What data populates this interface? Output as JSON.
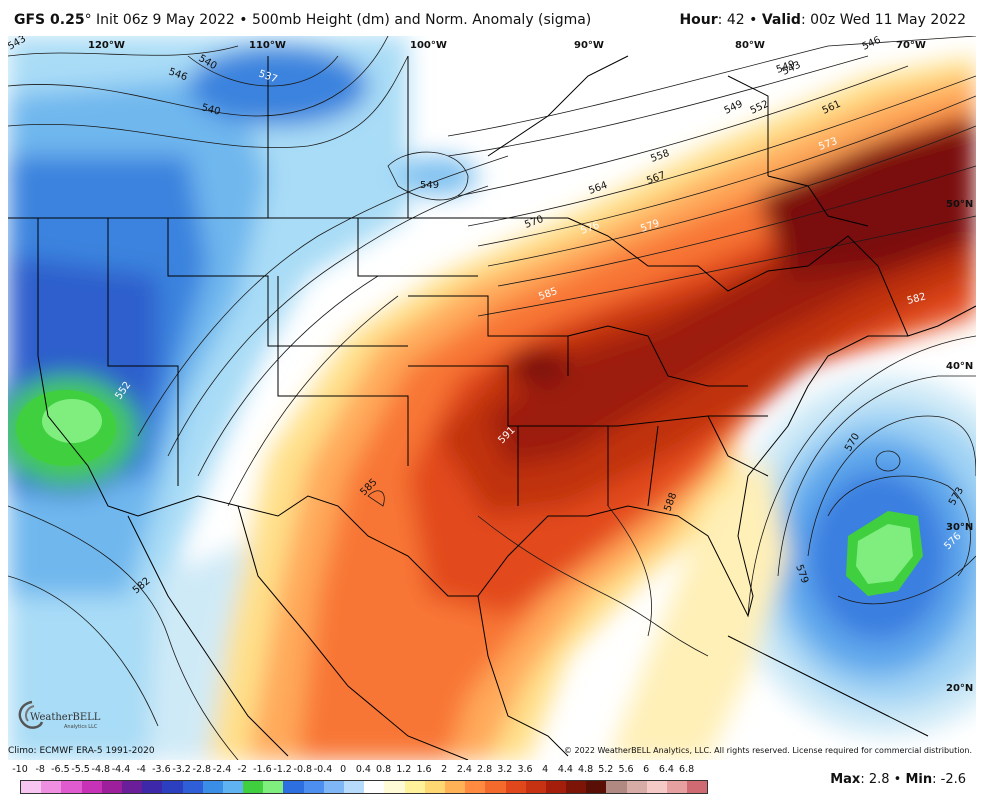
{
  "header": {
    "model": "GFS 0.25",
    "degree": "°",
    "init": " Init 06z 9 May 2022 • 500mb Height (dm) and Norm. Anomaly (sigma)",
    "hour_label": "Hour",
    "hour_value": ": 42 • ",
    "valid_label": "Valid",
    "valid_value": ": 00z Wed 11 May 2022"
  },
  "map": {
    "lon_labels": [
      "120°W",
      "110°W",
      "100°W",
      "90°W",
      "80°W",
      "70°W"
    ],
    "lat_labels": [
      "50°N",
      "40°N",
      "30°N",
      "20°N"
    ],
    "contour_labels": [
      "543",
      "540",
      "537",
      "546",
      "549",
      "540",
      "543",
      "549",
      "552",
      "546",
      "549",
      "561",
      "558",
      "564",
      "567",
      "573",
      "570",
      "576",
      "579",
      "582",
      "585",
      "591",
      "585",
      "588",
      "552",
      "582",
      "570",
      "573",
      "576",
      "579"
    ]
  },
  "footer": {
    "climo": "Climo: ECMWF ERA-5 1991-2020",
    "copyright": "© 2022 WeatherBELL Analytics, LLC. All rights reserved. License required for commercial distribution.",
    "logo_text": "WeatherBELL",
    "logo_sub": "Analytics LLC"
  },
  "colorbar": {
    "labels": [
      "-10",
      "-8",
      "-6.5",
      "-5.5",
      "-4.8",
      "-4.4",
      "-4",
      "-3.6",
      "-3.2",
      "-2.8",
      "-2.4",
      "-2",
      "-1.6",
      "-1.2",
      "-0.8",
      "-0.4",
      "0",
      "0.4",
      "0.8",
      "1.2",
      "1.6",
      "2",
      "2.4",
      "2.8",
      "3.2",
      "3.6",
      "4",
      "4.4",
      "4.8",
      "5.2",
      "5.6",
      "6",
      "6.4",
      "6.8"
    ],
    "colors": [
      "#f7c6f0",
      "#ee8fe0",
      "#e05ad0",
      "#c832b6",
      "#9e1f9c",
      "#6a1e9a",
      "#3c28a8",
      "#2c3fc0",
      "#2f5fd8",
      "#3b8ee6",
      "#5fb3f0",
      "#3fcf3f",
      "#7fee7f",
      "#2d6fe0",
      "#4d8ff0",
      "#7fb6f5",
      "#b7dcfb",
      "#ffffff",
      "#fffbd6",
      "#fff29a",
      "#ffd873",
      "#ffb256",
      "#ff8a40",
      "#f46a2c",
      "#e0481c",
      "#c63212",
      "#a51e0c",
      "#7d1408",
      "#5a0f06",
      "#b08a82",
      "#d8aca6",
      "#f4c9c6",
      "#e7a0a0",
      "#d06a72"
    ]
  },
  "stats": {
    "max_label": "Max",
    "max_value": ": 2.8 • ",
    "min_label": "Min",
    "min_value": ": -2.6"
  }
}
